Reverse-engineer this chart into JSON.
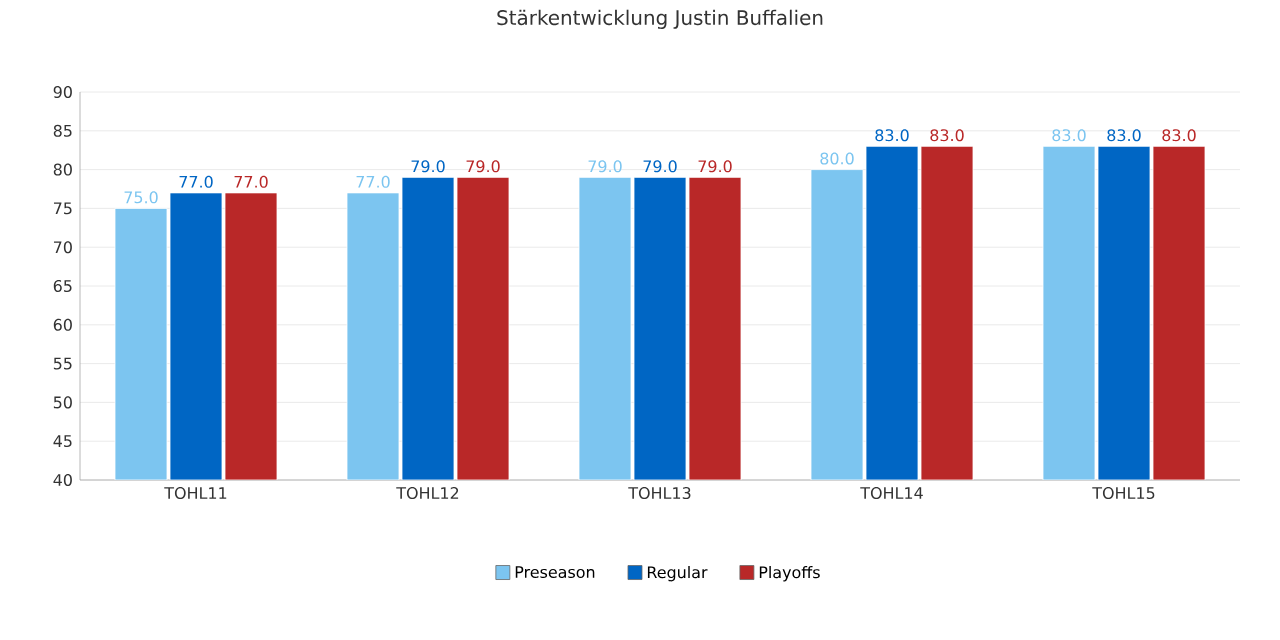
{
  "chart_data": {
    "type": "bar",
    "title": "Stärkentwicklung Justin Buffalien",
    "categories": [
      "TOHL11",
      "TOHL12",
      "TOHL13",
      "TOHL14",
      "TOHL15"
    ],
    "series": [
      {
        "name": "Preseason",
        "color": "#7cc5f0",
        "values": [
          75,
          77,
          79,
          80,
          83
        ],
        "value_labels": [
          "75.0",
          "77.0",
          "79.0",
          "80.0",
          "83.0"
        ]
      },
      {
        "name": "Regular",
        "color": "#0066c4",
        "values": [
          77,
          79,
          79,
          83,
          83
        ],
        "value_labels": [
          "77.0",
          "79.0",
          "79.0",
          "83.0",
          "83.0"
        ]
      },
      {
        "name": "Playoffs",
        "color": "#b92828",
        "values": [
          77,
          79,
          79,
          83,
          83
        ],
        "value_labels": [
          "77.0",
          "79.0",
          "79.0",
          "83.0",
          "83.0"
        ]
      }
    ],
    "ylim": [
      40,
      90
    ],
    "yticks": [
      40,
      45,
      50,
      55,
      60,
      65,
      70,
      75,
      80,
      85,
      90
    ],
    "grid": "y",
    "legend": "bottom"
  }
}
